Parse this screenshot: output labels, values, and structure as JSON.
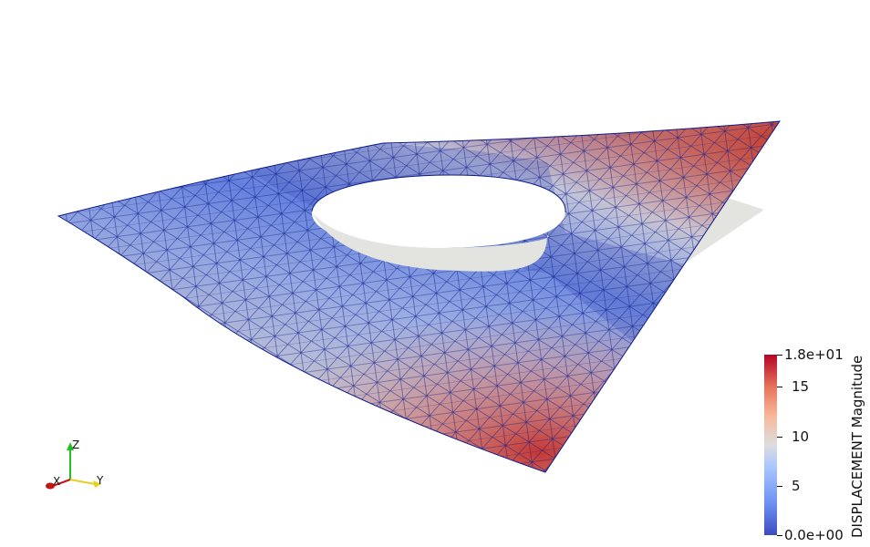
{
  "colorbar": {
    "title": "DISPLACEMENT Magnitude",
    "ticks": [
      "1.8e+01",
      "15",
      "10",
      "5",
      "0.0e+00"
    ],
    "range": [
      0,
      18
    ],
    "colormap": [
      "#3b4cc0",
      "#dddddd",
      "#b40426"
    ]
  },
  "orientation_axes": {
    "x": "X",
    "y": "Y",
    "z": "Z"
  },
  "colors": {
    "background": "#ffffff",
    "mesh_edges": "#0b1a8c",
    "undeformed_plate": "#e3e3e0"
  }
}
